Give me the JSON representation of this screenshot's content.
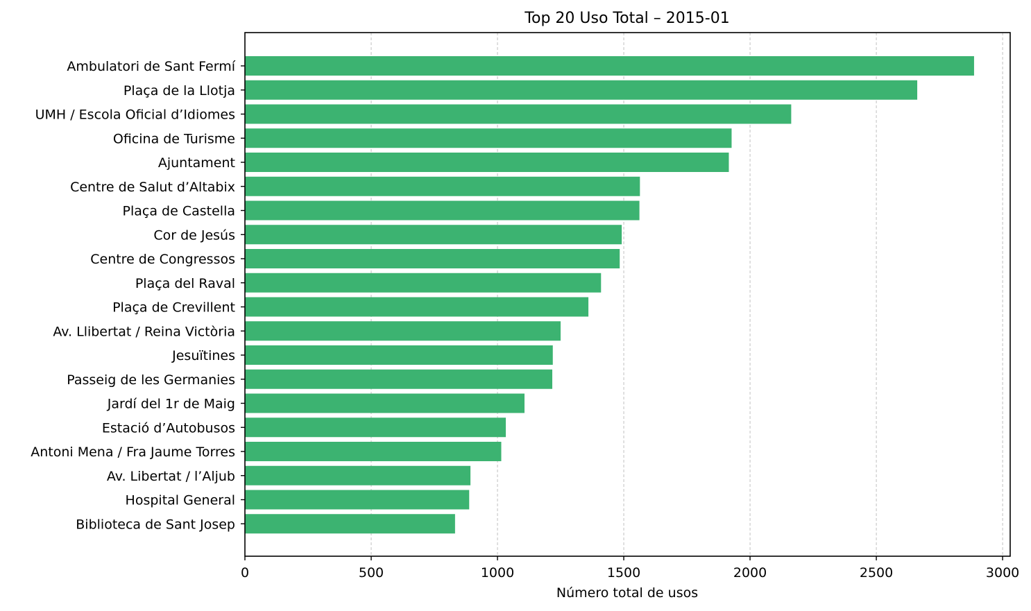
{
  "chart_data": {
    "type": "bar",
    "orientation": "horizontal",
    "title": "Top 20 Uso Total – 2015-01",
    "xlabel": "Número total de usos",
    "ylabel": "",
    "xlim": [
      0,
      3030
    ],
    "xticks": [
      0,
      500,
      1000,
      1500,
      2000,
      2500,
      3000
    ],
    "grid": "x-dashed",
    "bar_color": "#3cb371",
    "categories": [
      "Ambulatori de Sant Fermí",
      "Plaça de la Llotja",
      "UMH / Escola Oficial d’Idiomes",
      "Oficina de Turisme",
      "Ajuntament",
      "Centre de Salut d’Altabix",
      "Plaça de Castella",
      "Cor de Jesús",
      "Centre de Congressos",
      "Plaça del Raval",
      "Plaça de Crevillent",
      "Av. Llibertat / Reina Victòria",
      "Jesuïtines",
      "Passeig de les Germanies",
      "Jardí del 1r de Maig",
      "Estació d’Autobusos",
      "Antoni Mena / Fra Jaume Torres",
      "Av. Libertat / l’Aljub",
      "Hospital General",
      "Biblioteca de Sant Josep"
    ],
    "values": [
      2887,
      2662,
      2163,
      1927,
      1916,
      1564,
      1562,
      1492,
      1484,
      1410,
      1360,
      1250,
      1219,
      1217,
      1107,
      1033,
      1015,
      893,
      888,
      832
    ]
  }
}
